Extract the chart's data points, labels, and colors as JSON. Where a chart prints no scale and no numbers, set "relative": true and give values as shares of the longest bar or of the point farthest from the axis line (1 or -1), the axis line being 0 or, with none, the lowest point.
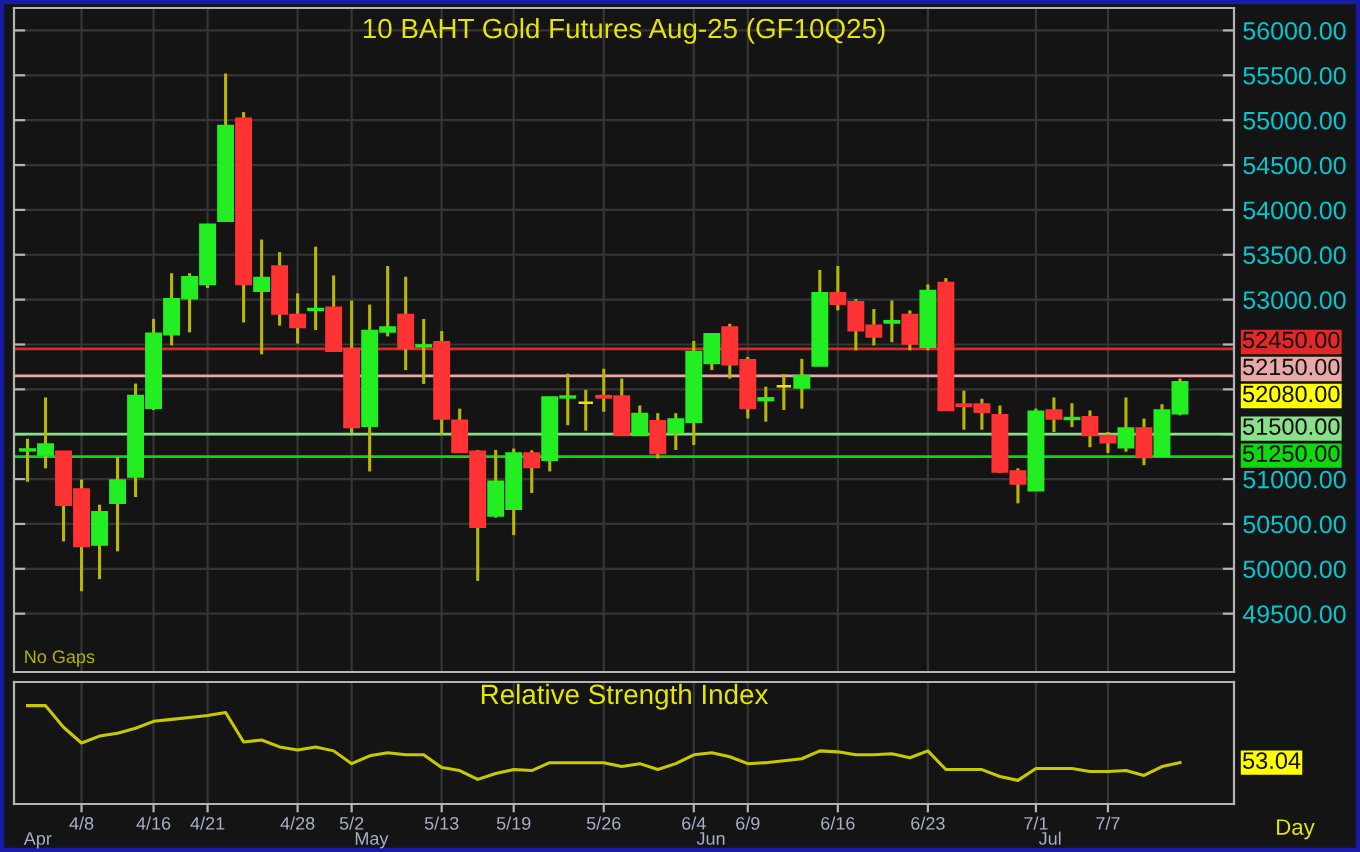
{
  "chart_data": [
    {
      "type": "candlestick",
      "title": "10 BAHT Gold Futures Aug-25 (GF10Q25)",
      "categories": [
        null,
        null,
        null,
        null,
        null,
        null,
        null,
        null,
        null,
        null,
        null,
        null,
        null,
        null,
        null,
        null,
        null,
        null,
        null,
        null,
        null,
        null,
        null,
        null,
        null,
        null,
        null,
        null,
        null,
        null,
        null,
        null,
        null,
        null,
        null,
        null,
        null,
        null,
        null,
        null,
        null,
        null,
        null,
        null,
        null,
        null,
        null,
        null,
        null,
        null,
        null,
        null,
        null,
        null,
        null,
        null,
        null,
        null,
        null,
        null,
        null,
        null,
        null,
        null,
        null
      ],
      "ohlc": [
        [
          51320,
          51450,
          50970,
          51330
        ],
        [
          51275,
          51910,
          51120,
          51385
        ],
        [
          51305,
          51305,
          50305,
          50715
        ],
        [
          50885,
          50995,
          49750,
          50255
        ],
        [
          50270,
          50715,
          49885,
          50630
        ],
        [
          50735,
          51245,
          50195,
          50985
        ],
        [
          51030,
          52065,
          50800,
          51925
        ],
        [
          51795,
          52785,
          51770,
          52620
        ],
        [
          52615,
          53295,
          52490,
          53005
        ],
        [
          53015,
          53295,
          52635,
          53250
        ],
        [
          53175,
          53835,
          53130,
          53835
        ],
        [
          53880,
          55520,
          53875,
          54935
        ],
        [
          55015,
          55090,
          52745,
          53175
        ],
        [
          53100,
          53670,
          52390,
          53240
        ],
        [
          53370,
          53530,
          52710,
          52845
        ],
        [
          52830,
          53070,
          52510,
          52695
        ],
        [
          52885,
          53590,
          52660,
          52895
        ],
        [
          52910,
          53270,
          52430,
          52430
        ],
        [
          52450,
          52990,
          51510,
          51580
        ],
        [
          51595,
          52945,
          51085,
          52650
        ],
        [
          52645,
          53375,
          52590,
          52690
        ],
        [
          52830,
          53255,
          52215,
          52460
        ],
        [
          52480,
          52785,
          52060,
          52490
        ],
        [
          52525,
          52650,
          51490,
          51675
        ],
        [
          51650,
          51785,
          51290,
          51305
        ],
        [
          51305,
          51325,
          49865,
          50470
        ],
        [
          50595,
          51325,
          50570,
          50970
        ],
        [
          50670,
          51340,
          50375,
          51285
        ],
        [
          51285,
          51320,
          50845,
          51135
        ],
        [
          51215,
          51910,
          51085,
          51910
        ],
        [
          51910,
          52175,
          51600,
          51920
        ],
        [
          51850,
          51995,
          51540,
          51850
        ],
        [
          51925,
          52230,
          51750,
          51910
        ],
        [
          51920,
          52120,
          51490,
          51490
        ],
        [
          51490,
          51820,
          51490,
          51725
        ],
        [
          51645,
          51735,
          51230,
          51290
        ],
        [
          51520,
          51735,
          51325,
          51665
        ],
        [
          51640,
          52540,
          51380,
          52415
        ],
        [
          52295,
          52620,
          52215,
          52615
        ],
        [
          52690,
          52730,
          52120,
          52280
        ],
        [
          52325,
          52360,
          51675,
          51795
        ],
        [
          51880,
          52030,
          51640,
          51900
        ],
        [
          52035,
          52170,
          51770,
          52035
        ],
        [
          52020,
          52340,
          51785,
          52150
        ],
        [
          52265,
          53330,
          52265,
          53070
        ],
        [
          53070,
          53375,
          52880,
          52955
        ],
        [
          52970,
          53005,
          52435,
          52660
        ],
        [
          52710,
          52895,
          52490,
          52590
        ],
        [
          52745,
          52990,
          52525,
          52760
        ],
        [
          52830,
          52880,
          52435,
          52510
        ],
        [
          52475,
          53170,
          52435,
          53095
        ],
        [
          53185,
          53240,
          51770,
          51770
        ],
        [
          51830,
          51985,
          51550,
          51815
        ],
        [
          51830,
          51895,
          51550,
          51750
        ],
        [
          51710,
          51820,
          51070,
          51085
        ],
        [
          51085,
          51120,
          50730,
          50950
        ],
        [
          50875,
          51785,
          50875,
          51750
        ],
        [
          51765,
          51910,
          51525,
          51675
        ],
        [
          51670,
          51845,
          51580,
          51680
        ],
        [
          51690,
          51765,
          51355,
          51490
        ],
        [
          51480,
          51525,
          51290,
          51410
        ],
        [
          51355,
          51910,
          51305,
          51565
        ],
        [
          51565,
          51675,
          51155,
          51245
        ],
        [
          51260,
          51835,
          51260,
          51765
        ],
        [
          51735,
          52120,
          51710,
          52080
        ]
      ],
      "colors": [
        "#22ee22",
        "#22ee22",
        "#ff3333",
        "#ff3333",
        "#22ee22",
        "#22ee22",
        "#22ee22",
        "#22ee22",
        "#22ee22",
        "#22ee22",
        "#22ee22",
        "#22ee22",
        "#ff3333",
        "#22ee22",
        "#ff3333",
        "#ff3333",
        "#22ee22",
        "#ff3333",
        "#ff3333",
        "#22ee22",
        "#22ee22",
        "#ff3333",
        "#22ee22",
        "#ff3333",
        "#ff3333",
        "#ff3333",
        "#22ee22",
        "#22ee22",
        "#ff3333",
        "#22ee22",
        "#22ee22",
        "#e6e600",
        "#ff3333",
        "#ff3333",
        "#22ee22",
        "#ff3333",
        "#22ee22",
        "#22ee22",
        "#22ee22",
        "#ff3333",
        "#ff3333",
        "#22ee22",
        "#e6e600",
        "#22ee22",
        "#22ee22",
        "#ff3333",
        "#ff3333",
        "#ff3333",
        "#22ee22",
        "#ff3333",
        "#22ee22",
        "#ff3333",
        "#ff3333",
        "#ff3333",
        "#ff3333",
        "#ff3333",
        "#22ee22",
        "#ff3333",
        "#22ee22",
        "#ff3333",
        "#ff3333",
        "#22ee22",
        "#ff3333",
        "#22ee22",
        "#22ee22"
      ],
      "color": "#b8b800",
      "ylim": [
        48850,
        56250
      ],
      "yticks": [
        {
          "value": 49500,
          "label": "49500.00"
        },
        {
          "value": 50000,
          "label": "50000.00"
        },
        {
          "value": 50500,
          "label": "50500.00"
        },
        {
          "value": 51000,
          "label": "51000.00"
        },
        {
          "value": 51500,
          "label": null
        },
        {
          "value": 52000,
          "label": null
        },
        {
          "value": 52500,
          "label": null
        },
        {
          "value": 53000,
          "label": "53000.00"
        },
        {
          "value": 53500,
          "label": "53500.00"
        },
        {
          "value": 54000,
          "label": "54000.00"
        },
        {
          "value": 54500,
          "label": "54500.00"
        },
        {
          "value": 55000,
          "label": "55000.00"
        },
        {
          "value": 55500,
          "label": "55500.00"
        },
        {
          "value": 56000,
          "label": "56000.00"
        }
      ],
      "grid": true,
      "tick_labels": "y",
      "ref_lines": [
        {
          "axis": "y",
          "value": 52450,
          "label": "52450.00",
          "color": "#e02828"
        },
        {
          "axis": "y",
          "value": 52150,
          "label": "52150.00",
          "color": "#e8a8a8"
        },
        {
          "axis": "y",
          "value": 51500,
          "label": "51500.00",
          "color": "#88e088"
        },
        {
          "axis": "y",
          "value": 51250,
          "label": "51250.00",
          "color": "#10d810"
        }
      ],
      "annotations": [
        "No Gaps",
        "52080.00"
      ]
    },
    {
      "type": "line",
      "title": "Relative Strength Index",
      "xlabel": "Day",
      "categories": [
        null,
        null,
        null,
        "4/8",
        null,
        null,
        null,
        "4/16",
        null,
        null,
        "4/21",
        null,
        null,
        null,
        null,
        "4/28",
        null,
        null,
        "5/2",
        null,
        null,
        null,
        null,
        "5/13",
        null,
        null,
        null,
        "5/19",
        null,
        null,
        null,
        null,
        "5/26",
        null,
        null,
        null,
        null,
        "6/4",
        null,
        null,
        "6/9",
        null,
        null,
        null,
        null,
        "6/16",
        null,
        null,
        null,
        null,
        "6/23",
        null,
        null,
        null,
        null,
        null,
        "7/1",
        null,
        null,
        null,
        "7/7",
        null,
        null,
        null,
        null
      ],
      "series": [
        {
          "color": "#c8c800",
          "values": [
            1.0,
            1.0,
            0.78,
            0.62,
            0.69,
            0.72,
            0.77,
            0.84,
            0.86,
            0.88,
            0.9,
            0.93,
            0.63,
            0.65,
            0.58,
            0.55,
            0.58,
            0.54,
            0.41,
            0.49,
            0.52,
            0.5,
            0.5,
            0.37,
            0.34,
            0.25,
            0.31,
            0.35,
            0.34,
            0.42,
            0.42,
            0.42,
            0.42,
            0.38,
            0.41,
            0.35,
            0.41,
            0.5,
            0.52,
            0.48,
            0.41,
            0.42,
            0.44,
            0.46,
            0.54,
            0.53,
            0.5,
            0.5,
            0.51,
            0.47,
            0.54,
            0.35,
            0.35,
            0.35,
            0.28,
            0.24,
            0.36,
            0.36,
            0.36,
            0.33,
            0.33,
            0.34,
            0.29,
            0.38,
            0.42
          ]
        }
      ],
      "relative": true,
      "grid": "x",
      "annotations": [
        "Apr",
        "May",
        "Jun",
        "Jul",
        "53.04"
      ]
    }
  ]
}
